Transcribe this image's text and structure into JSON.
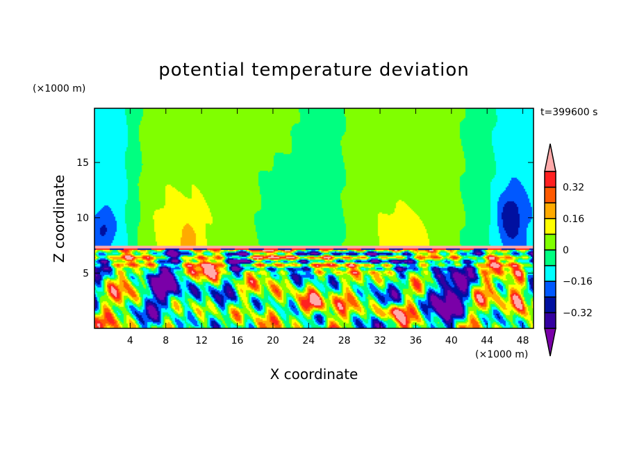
{
  "chart_data": {
    "type": "heatmap",
    "subtype": "filled-contour",
    "title": "potential temperature deviation",
    "xlabel": "X coordinate",
    "ylabel": "Z coordinate",
    "x_unit": "(×1000 m)",
    "y_unit": "(×1000 m)",
    "annotation": "t=399600 s",
    "xlim": [
      0,
      49.2
    ],
    "ylim": [
      0,
      19.9
    ],
    "x_ticks": [
      4,
      8,
      12,
      16,
      20,
      24,
      28,
      32,
      36,
      40,
      44,
      48
    ],
    "x_tick_labels": [
      "4",
      "8",
      "12",
      "16",
      "20",
      "24",
      "28",
      "32",
      "36",
      "40",
      "44",
      "48"
    ],
    "y_ticks": [
      5,
      10,
      15
    ],
    "y_tick_labels": [
      "5",
      "10",
      "15"
    ],
    "colorbar": {
      "levels": [
        -0.4,
        -0.32,
        -0.24,
        -0.16,
        -0.08,
        0,
        0.08,
        0.16,
        0.24,
        0.32,
        0.4
      ],
      "labeled_levels": [
        -0.32,
        -0.16,
        0,
        0.16,
        0.32
      ],
      "labels": [
        "−0.32",
        "−0.16",
        "0",
        "0.16",
        "0.32"
      ],
      "colors": [
        "#7a00a8",
        "#3300a0",
        "#0010a0",
        "#0058ff",
        "#00ffff",
        "#00ff80",
        "#80ff00",
        "#ffff00",
        "#ffaa00",
        "#ff5a00",
        "#ff2020",
        "#ffaaaa"
      ],
      "extend": "both"
    },
    "regions": [
      {
        "desc_x": [
          0,
          4
        ],
        "desc_z": [
          7.6,
          19.9
        ],
        "value": -0.12
      },
      {
        "desc_x": [
          5,
          18
        ],
        "desc_z": [
          7.6,
          19.9
        ],
        "value": 0.04
      },
      {
        "desc_x": [
          6,
          13
        ],
        "desc_z": [
          7.6,
          13
        ],
        "value": 0.12
      },
      {
        "desc_x": [
          18,
          28
        ],
        "desc_z": [
          7.6,
          15
        ],
        "value": -0.04
      },
      {
        "desc_x": [
          28,
          40
        ],
        "desc_z": [
          7.6,
          19.9
        ],
        "value": 0.04
      },
      {
        "desc_x": [
          31,
          38
        ],
        "desc_z": [
          7.6,
          11
        ],
        "value": 0.12
      },
      {
        "desc_x": [
          44,
          49
        ],
        "desc_z": [
          7.6,
          19.9
        ],
        "value": -0.12
      },
      {
        "desc_x": [
          45,
          48
        ],
        "desc_z": [
          8,
          12
        ],
        "value": -0.28
      }
    ]
  }
}
